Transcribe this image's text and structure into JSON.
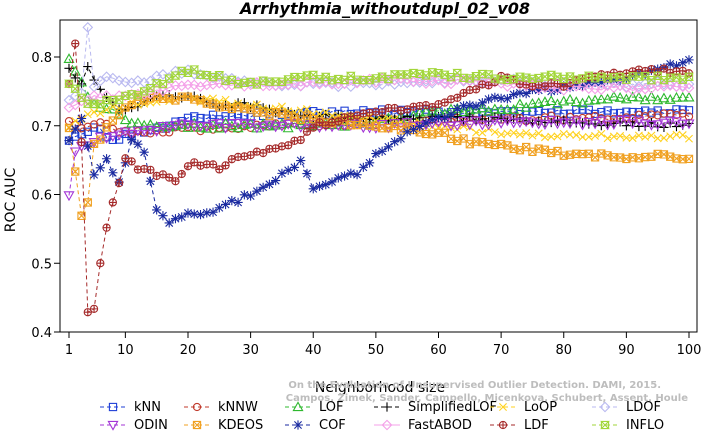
{
  "chart_data": {
    "type": "line",
    "title": "Arrhythmia_withoutdupl_02_v08",
    "xlabel": "Neighborhood size",
    "ylabel": "ROC AUC",
    "xlim": [
      1,
      100
    ],
    "ylim": [
      0.4,
      0.85
    ],
    "xticks": [
      1,
      10,
      20,
      30,
      40,
      50,
      60,
      70,
      80,
      90,
      100
    ],
    "yticks": [
      0.4,
      0.5,
      0.6,
      0.7,
      0.8
    ],
    "watermark": [
      "Campos, Zimek, Sander, Campello, Micenkova, Schubert, Assent, Houle",
      "On the Evaluation of Unsupervised Outlier Detection. DAMI, 2015."
    ],
    "legend_position": "bottom",
    "series": [
      {
        "name": "kNN",
        "color": "#1f3fd6",
        "marker": "square",
        "dash": "4,3",
        "x_range": [
          1,
          100
        ],
        "knots": [
          [
            1,
            0.68
          ],
          [
            3,
            0.69
          ],
          [
            5,
            0.7
          ],
          [
            8,
            0.68
          ],
          [
            12,
            0.69
          ],
          [
            20,
            0.71
          ],
          [
            30,
            0.715
          ],
          [
            50,
            0.72
          ],
          [
            70,
            0.72
          ],
          [
            100,
            0.72
          ]
        ]
      },
      {
        "name": "kNNW",
        "color": "#c0392b",
        "marker": "circle",
        "dash": "4,3",
        "x_range": [
          1,
          100
        ],
        "knots": [
          [
            1,
            0.71
          ],
          [
            3,
            0.7
          ],
          [
            5,
            0.705
          ],
          [
            10,
            0.69
          ],
          [
            20,
            0.695
          ],
          [
            30,
            0.7
          ],
          [
            50,
            0.705
          ],
          [
            70,
            0.71
          ],
          [
            100,
            0.715
          ]
        ]
      },
      {
        "name": "LOF",
        "color": "#2eb82e",
        "marker": "triangle-up",
        "dash": "4,3",
        "x_range": [
          1,
          100
        ],
        "knots": [
          [
            1,
            0.8
          ],
          [
            2,
            0.78
          ],
          [
            3,
            0.76
          ],
          [
            5,
            0.73
          ],
          [
            8,
            0.72
          ],
          [
            12,
            0.7
          ],
          [
            20,
            0.7
          ],
          [
            30,
            0.7
          ],
          [
            40,
            0.7
          ],
          [
            50,
            0.705
          ],
          [
            60,
            0.72
          ],
          [
            70,
            0.725
          ],
          [
            80,
            0.735
          ],
          [
            90,
            0.74
          ],
          [
            100,
            0.74
          ]
        ]
      },
      {
        "name": "SimplifiedLOF",
        "color": "#000000",
        "marker": "plus",
        "dash": "4,3",
        "x_range": [
          1,
          100
        ],
        "knots": [
          [
            1,
            0.78
          ],
          [
            3,
            0.76
          ],
          [
            4,
            0.79
          ],
          [
            6,
            0.75
          ],
          [
            10,
            0.72
          ],
          [
            15,
            0.74
          ],
          [
            20,
            0.745
          ],
          [
            25,
            0.73
          ],
          [
            30,
            0.73
          ],
          [
            35,
            0.72
          ],
          [
            40,
            0.715
          ],
          [
            50,
            0.71
          ],
          [
            60,
            0.71
          ],
          [
            70,
            0.71
          ],
          [
            80,
            0.705
          ],
          [
            100,
            0.7
          ]
        ]
      },
      {
        "name": "LoOP",
        "color": "#ffd21f",
        "marker": "x",
        "dash": "4,3",
        "x_range": [
          1,
          100
        ],
        "knots": [
          [
            1,
            0.7
          ],
          [
            5,
            0.72
          ],
          [
            10,
            0.73
          ],
          [
            20,
            0.74
          ],
          [
            30,
            0.73
          ],
          [
            40,
            0.72
          ],
          [
            50,
            0.71
          ],
          [
            60,
            0.7
          ],
          [
            70,
            0.69
          ],
          [
            80,
            0.685
          ],
          [
            90,
            0.685
          ],
          [
            100,
            0.685
          ]
        ]
      },
      {
        "name": "LDOF",
        "color": "#b9b9f0",
        "marker": "diamond",
        "dash": "4,3",
        "x_range": [
          1,
          100
        ],
        "knots": [
          [
            1,
            0.74
          ],
          [
            3,
            0.75
          ],
          [
            4,
            0.84
          ],
          [
            5,
            0.76
          ],
          [
            7,
            0.77
          ],
          [
            10,
            0.76
          ],
          [
            15,
            0.77
          ],
          [
            20,
            0.78
          ],
          [
            25,
            0.77
          ],
          [
            30,
            0.76
          ],
          [
            40,
            0.76
          ],
          [
            50,
            0.76
          ],
          [
            60,
            0.765
          ],
          [
            70,
            0.765
          ],
          [
            80,
            0.76
          ],
          [
            90,
            0.76
          ],
          [
            100,
            0.76
          ]
        ]
      },
      {
        "name": "ODIN",
        "color": "#a335d6",
        "marker": "triangle-down",
        "dash": "4,3",
        "x_range": [
          1,
          100
        ],
        "knots": [
          [
            1,
            0.6
          ],
          [
            2,
            0.66
          ],
          [
            3,
            0.67
          ],
          [
            5,
            0.68
          ],
          [
            10,
            0.69
          ],
          [
            20,
            0.7
          ],
          [
            30,
            0.7
          ],
          [
            50,
            0.7
          ],
          [
            70,
            0.705
          ],
          [
            100,
            0.705
          ]
        ]
      },
      {
        "name": "KDEOS",
        "color": "#f0a020",
        "marker": "square-x",
        "dash": "4,3",
        "x_range": [
          1,
          100
        ],
        "knots": [
          [
            1,
            0.7
          ],
          [
            3,
            0.57
          ],
          [
            4,
            0.59
          ],
          [
            5,
            0.67
          ],
          [
            8,
            0.71
          ],
          [
            12,
            0.74
          ],
          [
            20,
            0.74
          ],
          [
            30,
            0.72
          ],
          [
            40,
            0.71
          ],
          [
            50,
            0.7
          ],
          [
            60,
            0.69
          ],
          [
            65,
            0.675
          ],
          [
            70,
            0.67
          ],
          [
            80,
            0.66
          ],
          [
            90,
            0.655
          ],
          [
            100,
            0.655
          ]
        ]
      },
      {
        "name": "COF",
        "color": "#1a2aa0",
        "marker": "asterisk",
        "dash": "4,3",
        "x_range": [
          1,
          100
        ],
        "knots": [
          [
            1,
            0.68
          ],
          [
            3,
            0.71
          ],
          [
            5,
            0.63
          ],
          [
            7,
            0.65
          ],
          [
            9,
            0.62
          ],
          [
            11,
            0.68
          ],
          [
            13,
            0.66
          ],
          [
            15,
            0.58
          ],
          [
            17,
            0.56
          ],
          [
            20,
            0.57
          ],
          [
            25,
            0.58
          ],
          [
            30,
            0.6
          ],
          [
            35,
            0.63
          ],
          [
            38,
            0.65
          ],
          [
            40,
            0.61
          ],
          [
            43,
            0.62
          ],
          [
            47,
            0.63
          ],
          [
            50,
            0.66
          ],
          [
            55,
            0.69
          ],
          [
            60,
            0.71
          ],
          [
            65,
            0.73
          ],
          [
            70,
            0.74
          ],
          [
            75,
            0.75
          ],
          [
            80,
            0.755
          ],
          [
            85,
            0.76
          ],
          [
            90,
            0.77
          ],
          [
            95,
            0.78
          ],
          [
            100,
            0.795
          ]
        ]
      },
      {
        "name": "FastABOD",
        "color": "#f4a0e8",
        "marker": "diamond",
        "dash": "",
        "x_range": [
          1,
          100
        ],
        "knots": [
          [
            1,
            0.73
          ],
          [
            5,
            0.74
          ],
          [
            10,
            0.74
          ],
          [
            20,
            0.76
          ],
          [
            30,
            0.76
          ],
          [
            40,
            0.76
          ],
          [
            50,
            0.765
          ],
          [
            60,
            0.765
          ],
          [
            70,
            0.76
          ],
          [
            80,
            0.755
          ],
          [
            100,
            0.755
          ]
        ]
      },
      {
        "name": "LDF",
        "color": "#a52a2a",
        "marker": "circle-plus",
        "dash": "4,3",
        "x_range": [
          1,
          100
        ],
        "knots": [
          [
            1,
            0.76
          ],
          [
            2,
            0.82
          ],
          [
            3,
            0.68
          ],
          [
            4,
            0.43
          ],
          [
            5,
            0.43
          ],
          [
            6,
            0.5
          ],
          [
            7,
            0.55
          ],
          [
            8,
            0.59
          ],
          [
            10,
            0.65
          ],
          [
            12,
            0.64
          ],
          [
            15,
            0.63
          ],
          [
            18,
            0.62
          ],
          [
            20,
            0.645
          ],
          [
            25,
            0.64
          ],
          [
            30,
            0.66
          ],
          [
            35,
            0.67
          ],
          [
            38,
            0.68
          ],
          [
            40,
            0.7
          ],
          [
            45,
            0.71
          ],
          [
            50,
            0.72
          ],
          [
            60,
            0.73
          ],
          [
            70,
            0.77
          ],
          [
            75,
            0.76
          ],
          [
            80,
            0.76
          ],
          [
            85,
            0.77
          ],
          [
            90,
            0.78
          ],
          [
            95,
            0.78
          ],
          [
            100,
            0.78
          ]
        ]
      },
      {
        "name": "INFLO",
        "color": "#a2d63a",
        "marker": "hourglass",
        "dash": "4,3",
        "x_range": [
          1,
          100
        ],
        "knots": [
          [
            1,
            0.76
          ],
          [
            3,
            0.74
          ],
          [
            5,
            0.73
          ],
          [
            10,
            0.74
          ],
          [
            15,
            0.76
          ],
          [
            20,
            0.78
          ],
          [
            25,
            0.77
          ],
          [
            30,
            0.76
          ],
          [
            40,
            0.77
          ],
          [
            50,
            0.77
          ],
          [
            60,
            0.775
          ],
          [
            70,
            0.77
          ],
          [
            75,
            0.77
          ],
          [
            80,
            0.77
          ],
          [
            90,
            0.77
          ],
          [
            100,
            0.77
          ]
        ]
      }
    ]
  }
}
